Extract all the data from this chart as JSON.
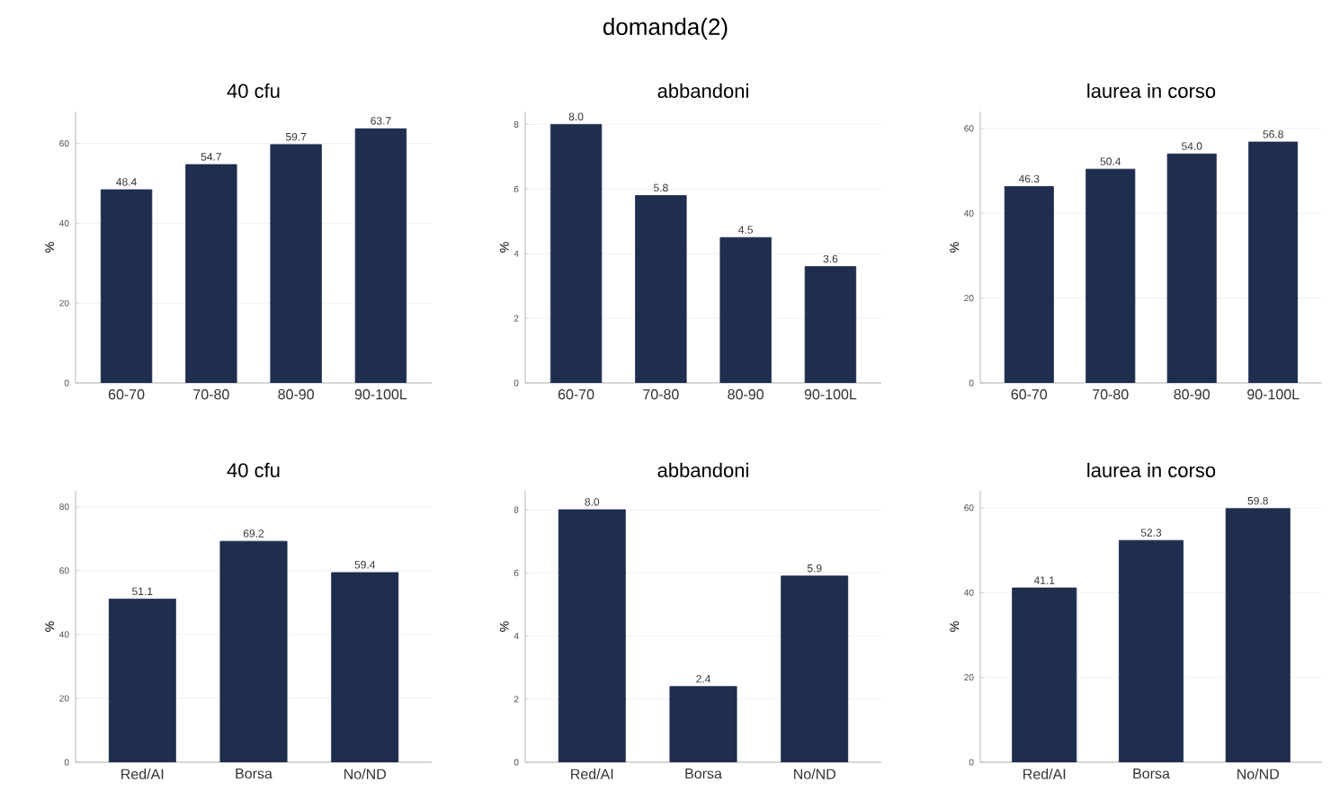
{
  "chart_data": [
    {
      "type": "bar",
      "title": "40 cfu",
      "annotations": [
        "domanda(2)"
      ],
      "categories": [
        "60-70",
        "70-80",
        "80-90",
        "90-100L"
      ],
      "values": [
        48.4,
        54.7,
        59.7,
        63.7
      ],
      "value_labels": [
        "48.4",
        "54.7",
        "59.7",
        "63.7"
      ],
      "color": "#1f2d4f",
      "ylabel": "%",
      "ylim": [
        0,
        68
      ],
      "yticks": [
        0,
        20,
        40,
        60
      ],
      "grid": "y"
    },
    {
      "type": "bar",
      "title": "abbandoni",
      "categories": [
        "60-70",
        "70-80",
        "80-90",
        "90-100L"
      ],
      "values": [
        8.0,
        5.8,
        4.5,
        3.6
      ],
      "value_labels": [
        "8.0",
        "5.8",
        "4.5",
        "3.6"
      ],
      "color": "#1f2d4f",
      "ylabel": "%",
      "ylim": [
        0,
        8.4
      ],
      "yticks": [
        0,
        2,
        4,
        6,
        8
      ],
      "grid": "y"
    },
    {
      "type": "bar",
      "title": "laurea in corso",
      "categories": [
        "60-70",
        "70-80",
        "80-90",
        "90-100L"
      ],
      "values": [
        46.3,
        50.4,
        54.0,
        56.8
      ],
      "value_labels": [
        "46.3",
        "50.4",
        "54.0",
        "56.8"
      ],
      "color": "#1f2d4f",
      "ylabel": "%",
      "ylim": [
        0,
        64
      ],
      "yticks": [
        0,
        20,
        40,
        60
      ],
      "grid": "y"
    },
    {
      "type": "bar",
      "title": "40 cfu",
      "categories": [
        "Red/AI",
        "Borsa",
        "No/ND"
      ],
      "values": [
        51.1,
        69.2,
        59.4
      ],
      "value_labels": [
        "51.1",
        "69.2",
        "59.4"
      ],
      "color": "#1f2d4f",
      "ylabel": "%",
      "ylim": [
        0,
        85
      ],
      "yticks": [
        0,
        20,
        40,
        60,
        80
      ],
      "grid": "y"
    },
    {
      "type": "bar",
      "title": "abbandoni",
      "categories": [
        "Red/AI",
        "Borsa",
        "No/ND"
      ],
      "values": [
        8.0,
        2.4,
        5.9
      ],
      "value_labels": [
        "8.0",
        "2.4",
        "5.9"
      ],
      "color": "#1f2d4f",
      "ylabel": "%",
      "ylim": [
        0,
        8.6
      ],
      "yticks": [
        0,
        2,
        4,
        6,
        8
      ],
      "grid": "y"
    },
    {
      "type": "bar",
      "title": "laurea in corso",
      "categories": [
        "Red/AI",
        "Borsa",
        "No/ND"
      ],
      "values": [
        41.1,
        52.3,
        59.8
      ],
      "value_labels": [
        "41.1",
        "52.3",
        "59.8"
      ],
      "color": "#1f2d4f",
      "ylabel": "%",
      "ylim": [
        0,
        64
      ],
      "yticks": [
        0,
        20,
        40,
        60
      ],
      "grid": "y"
    }
  ]
}
